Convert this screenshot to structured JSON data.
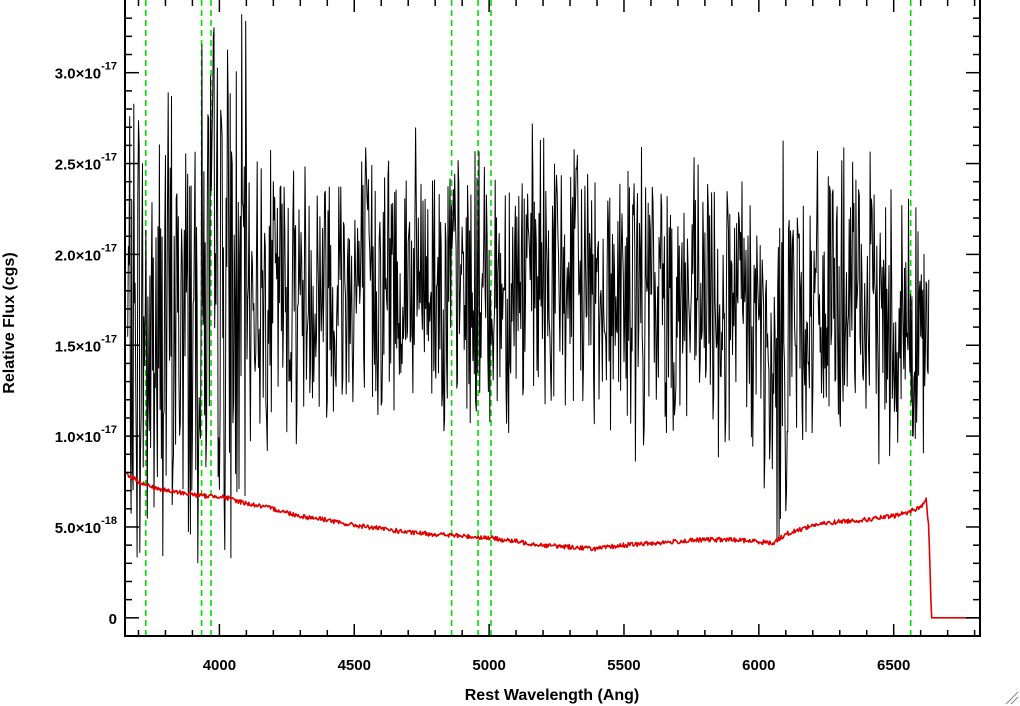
{
  "chart_data": {
    "type": "line",
    "title": "",
    "xlabel": "Rest Wavelength (Ang)",
    "ylabel": "Relative Flux (cgs)",
    "xlim": [
      3650,
      6820
    ],
    "ylim": [
      -1e-18,
      3.4e-17
    ],
    "xticks": [
      4000,
      4500,
      5000,
      5500,
      6000,
      6500
    ],
    "yticks": [
      {
        "value": 0,
        "label": "0"
      },
      {
        "value": 5e-18,
        "label": "5.0×10",
        "exp": "-18"
      },
      {
        "value": 1e-17,
        "label": "1.0×10",
        "exp": "-17"
      },
      {
        "value": 1.5e-17,
        "label": "1.5×10",
        "exp": "-17"
      },
      {
        "value": 2e-17,
        "label": "2.0×10",
        "exp": "-17"
      },
      {
        "value": 2.5e-17,
        "label": "2.5×10",
        "exp": "-17"
      },
      {
        "value": 3e-17,
        "label": "3.0×10",
        "exp": "-17"
      }
    ],
    "grid": false,
    "line_markers": {
      "color": "#00e000",
      "style": "dashed",
      "x": [
        3727,
        3934,
        3969,
        4861,
        4959,
        5007,
        6563
      ]
    },
    "series": [
      {
        "color": "#000000",
        "description": "observed spectrum",
        "x": [
          3660,
          3700,
          3750,
          3800,
          3850,
          3900,
          3950,
          4000,
          4050,
          4100,
          4150,
          4200,
          4300,
          4400,
          4500,
          4600,
          4700,
          4800,
          4900,
          5000,
          5100,
          5200,
          5300,
          5400,
          5500,
          5600,
          5700,
          5800,
          5900,
          6000,
          6050,
          6100,
          6200,
          6300,
          6400,
          6500,
          6600,
          6630
        ],
        "y": [
          1.5e-17,
          1.6e-17,
          1.5e-17,
          1.6e-17,
          1.6e-17,
          1.7e-17,
          1.9e-17,
          1.9e-17,
          1.7e-17,
          1.8e-17,
          1.8e-17,
          1.8e-17,
          1.8e-17,
          1.85e-17,
          1.85e-17,
          1.85e-17,
          1.85e-17,
          1.85e-17,
          1.8e-17,
          1.8e-17,
          1.85e-17,
          1.85e-17,
          1.85e-17,
          1.85e-17,
          1.75e-17,
          1.75e-17,
          1.75e-17,
          1.7e-17,
          1.7e-17,
          1.65e-17,
          1.1e-17,
          1.7e-17,
          1.7e-17,
          1.75e-17,
          1.7e-17,
          1.65e-17,
          1.6e-17,
          1.3e-17
        ]
      },
      {
        "color": "#e00000",
        "description": "model spectrum",
        "x": [
          3650,
          3700,
          3750,
          3800,
          3900,
          3950,
          4000,
          4100,
          4200,
          4300,
          4400,
          4450,
          4500,
          4600,
          4700,
          4800,
          4900,
          5000,
          5100,
          5200,
          5300,
          5400,
          5500,
          5600,
          5700,
          5800,
          5900,
          6000,
          6050,
          6100,
          6200,
          6300,
          6400,
          6500,
          6550,
          6600,
          6620,
          6630,
          6640,
          6820
        ],
        "y": [
          8e-18,
          7.5e-18,
          7.2e-18,
          7e-18,
          6.8e-18,
          6.7e-18,
          6.7e-18,
          6.3e-18,
          6e-18,
          5.6e-18,
          5.4e-18,
          5.2e-18,
          5.1e-18,
          4.9e-18,
          4.7e-18,
          4.6e-18,
          4.5e-18,
          4.4e-18,
          4.2e-18,
          4e-18,
          3.9e-18,
          3.8e-18,
          4e-18,
          4.1e-18,
          4.2e-18,
          4.3e-18,
          4.3e-18,
          4.2e-18,
          4.1e-18,
          4.6e-18,
          5.1e-18,
          5.3e-18,
          5.4e-18,
          5.6e-18,
          5.8e-18,
          6.1e-18,
          6.5e-18,
          5e-18,
          0,
          0
        ]
      }
    ]
  }
}
